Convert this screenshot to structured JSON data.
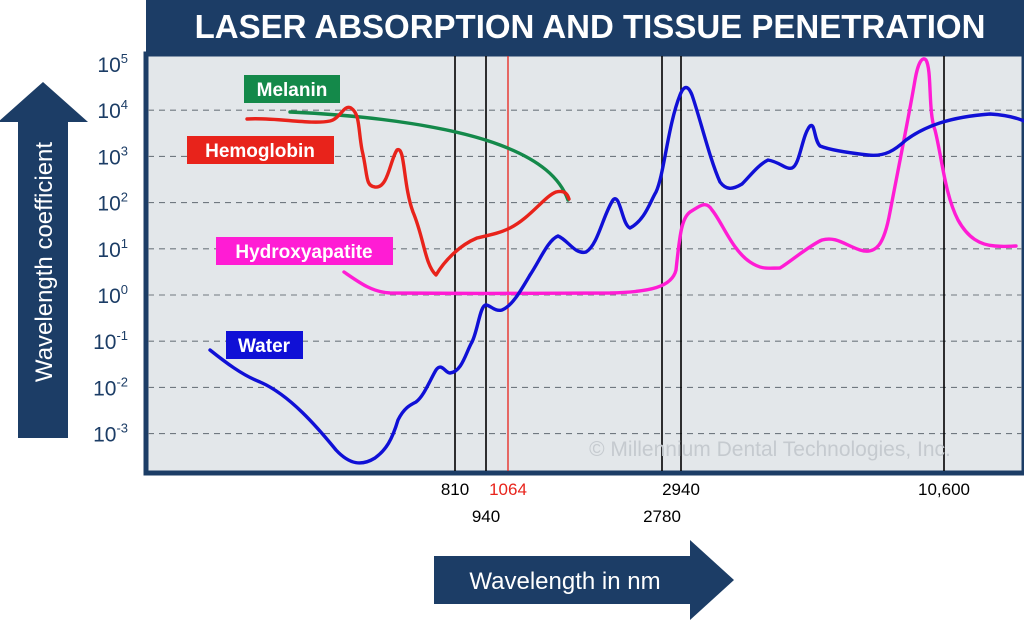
{
  "chart_data": {
    "type": "line",
    "title": "LASER ABSORPTION AND TISSUE PENETRATION",
    "ylabel": "Wavelength coefficient",
    "xlabel": "Wavelength in nm",
    "watermark": "© Millennium Dental Technologies, Inc.",
    "y_scale": "log",
    "y_ticks": [
      {
        "base": "10",
        "exp": "5"
      },
      {
        "base": "10",
        "exp": "4"
      },
      {
        "base": "10",
        "exp": "3"
      },
      {
        "base": "10",
        "exp": "2"
      },
      {
        "base": "10",
        "exp": "1"
      },
      {
        "base": "10",
        "exp": "0"
      },
      {
        "base": "10",
        "exp": "-1"
      },
      {
        "base": "10",
        "exp": "-2"
      },
      {
        "base": "10",
        "exp": "-3"
      }
    ],
    "grid": "dashed horizontal at each decade",
    "marked_wavelengths": [
      {
        "label": "810",
        "color": "#000000"
      },
      {
        "label": "940",
        "color": "#000000"
      },
      {
        "label": "1064",
        "color": "#e8231b"
      },
      {
        "label": "2780",
        "color": "#000000"
      },
      {
        "label": "2940",
        "color": "#000000"
      },
      {
        "label": "10,600",
        "color": "#000000"
      }
    ],
    "series": [
      {
        "name": "Melanin",
        "color": "#14894a"
      },
      {
        "name": "Hemoglobin",
        "color": "#e8231b"
      },
      {
        "name": "Hydroxyapatite",
        "color": "#ff1cd4"
      },
      {
        "name": "Water",
        "color": "#1010d6"
      }
    ],
    "colors": {
      "title_bar": "#1c3d66",
      "plot_background": "#e3e7ea",
      "axis": "#1c3d66"
    }
  }
}
